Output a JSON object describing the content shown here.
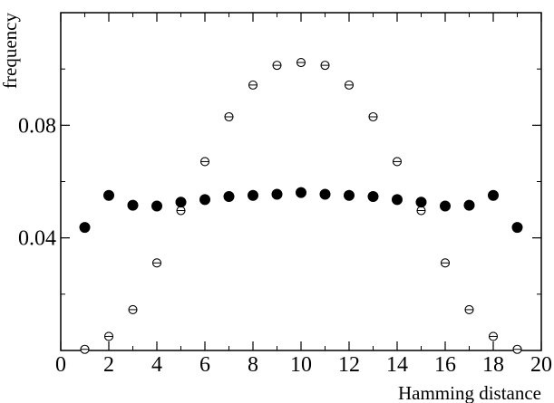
{
  "chart_data": {
    "type": "scatter",
    "title": "",
    "xlabel": "Hamming distance",
    "ylabel": "frequency",
    "xlim": [
      0,
      20
    ],
    "ylim": [
      0.0,
      0.12
    ],
    "x_ticks": [
      0,
      2,
      4,
      6,
      8,
      10,
      12,
      14,
      16,
      18,
      20
    ],
    "x_tick_labels": [
      "0",
      "2",
      "4",
      "6",
      "8",
      "10",
      "12",
      "14",
      "16",
      "18",
      "20"
    ],
    "y_ticks": [
      0.04,
      0.08
    ],
    "y_tick_labels": [
      "0.04",
      "0.08"
    ],
    "grid": false,
    "legend": "none",
    "series": [
      {
        "marker": "filled-circle",
        "color": "#000000",
        "x": [
          1,
          2,
          3,
          4,
          5,
          6,
          7,
          8,
          9,
          10,
          11,
          12,
          13,
          14,
          15,
          16,
          17,
          18,
          19
        ],
        "y": [
          0.0437,
          0.0551,
          0.0516,
          0.0513,
          0.0527,
          0.0536,
          0.0547,
          0.0551,
          0.0555,
          0.0561,
          0.0555,
          0.0551,
          0.0547,
          0.0536,
          0.0527,
          0.0513,
          0.0516,
          0.0551,
          0.0437
        ]
      },
      {
        "marker": "open-circle-with-errorbar",
        "color": "#000000",
        "x": [
          1,
          2,
          3,
          4,
          5,
          6,
          7,
          8,
          9,
          10,
          11,
          12,
          13,
          14,
          15,
          16,
          17,
          18,
          19
        ],
        "y": [
          0.0004,
          0.005,
          0.0145,
          0.0311,
          0.0497,
          0.0671,
          0.083,
          0.0943,
          0.1013,
          0.1023,
          0.1013,
          0.0943,
          0.083,
          0.0671,
          0.0497,
          0.0311,
          0.0145,
          0.005,
          0.0004
        ]
      }
    ]
  }
}
